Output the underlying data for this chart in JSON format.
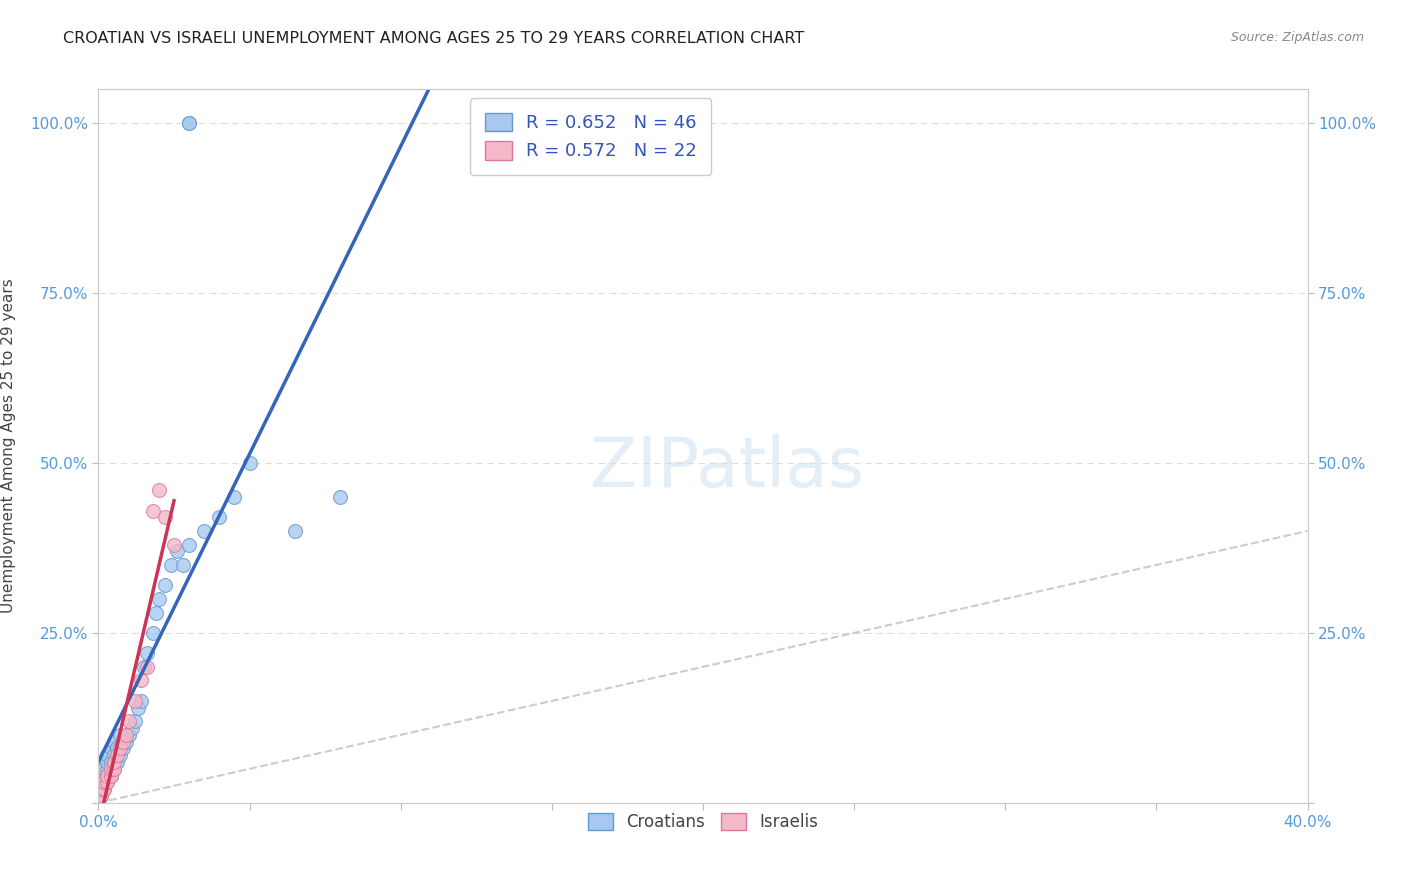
{
  "title": "CROATIAN VS ISRAELI UNEMPLOYMENT AMONG AGES 25 TO 29 YEARS CORRELATION CHART",
  "source": "Source: ZipAtlas.com",
  "ylabel": "Unemployment Among Ages 25 to 29 years",
  "xlim": [
    0.0,
    0.4
  ],
  "ylim": [
    0.0,
    1.05
  ],
  "xtick_vals": [
    0.0,
    0.05,
    0.1,
    0.15,
    0.2,
    0.25,
    0.3,
    0.35,
    0.4
  ],
  "xtick_labels": [
    "0.0%",
    "",
    "",
    "",
    "",
    "",
    "",
    "",
    "40.0%"
  ],
  "ytick_vals": [
    0.0,
    0.25,
    0.5,
    0.75,
    1.0
  ],
  "ytick_labels": [
    "",
    "25.0%",
    "50.0%",
    "75.0%",
    "100.0%"
  ],
  "croatian_color": "#a8c8f0",
  "croatian_edge_color": "#6699cc",
  "israeli_color": "#f5b8c8",
  "israeli_edge_color": "#dd7799",
  "line_croatian_color": "#3366bb",
  "line_israeli_color": "#cc3355",
  "diagonal_color": "#cccccc",
  "background_color": "#ffffff",
  "grid_color": "#dddddd",
  "tick_label_color": "#5599dd",
  "R_croatian": 0.652,
  "N_croatian": 46,
  "R_israeli": 0.572,
  "N_israeli": 22,
  "watermark": "ZIPatlas",
  "croatian_x": [
    0.001,
    0.001,
    0.001,
    0.002,
    0.002,
    0.002,
    0.002,
    0.003,
    0.003,
    0.003,
    0.003,
    0.004,
    0.004,
    0.004,
    0.005,
    0.005,
    0.005,
    0.006,
    0.006,
    0.007,
    0.007,
    0.008,
    0.009,
    0.01,
    0.011,
    0.012,
    0.013,
    0.014,
    0.015,
    0.016,
    0.018,
    0.019,
    0.02,
    0.022,
    0.024,
    0.026,
    0.028,
    0.03,
    0.035,
    0.04,
    0.045,
    0.05,
    0.065,
    0.08,
    0.03,
    0.03
  ],
  "croatian_y": [
    0.01,
    0.02,
    0.03,
    0.02,
    0.03,
    0.04,
    0.05,
    0.03,
    0.05,
    0.06,
    0.07,
    0.04,
    0.06,
    0.08,
    0.05,
    0.07,
    0.09,
    0.06,
    0.08,
    0.07,
    0.1,
    0.08,
    0.09,
    0.1,
    0.11,
    0.12,
    0.14,
    0.15,
    0.2,
    0.22,
    0.25,
    0.28,
    0.3,
    0.32,
    0.35,
    0.37,
    0.35,
    0.38,
    0.4,
    0.42,
    0.45,
    0.5,
    0.4,
    0.45,
    1.0,
    1.0
  ],
  "israeli_x": [
    0.001,
    0.001,
    0.002,
    0.002,
    0.003,
    0.003,
    0.004,
    0.004,
    0.005,
    0.005,
    0.006,
    0.007,
    0.008,
    0.009,
    0.01,
    0.012,
    0.014,
    0.016,
    0.018,
    0.02,
    0.022,
    0.025
  ],
  "israeli_y": [
    0.01,
    0.02,
    0.02,
    0.03,
    0.03,
    0.04,
    0.04,
    0.05,
    0.05,
    0.06,
    0.07,
    0.08,
    0.09,
    0.1,
    0.12,
    0.15,
    0.18,
    0.2,
    0.43,
    0.46,
    0.42,
    0.38
  ]
}
